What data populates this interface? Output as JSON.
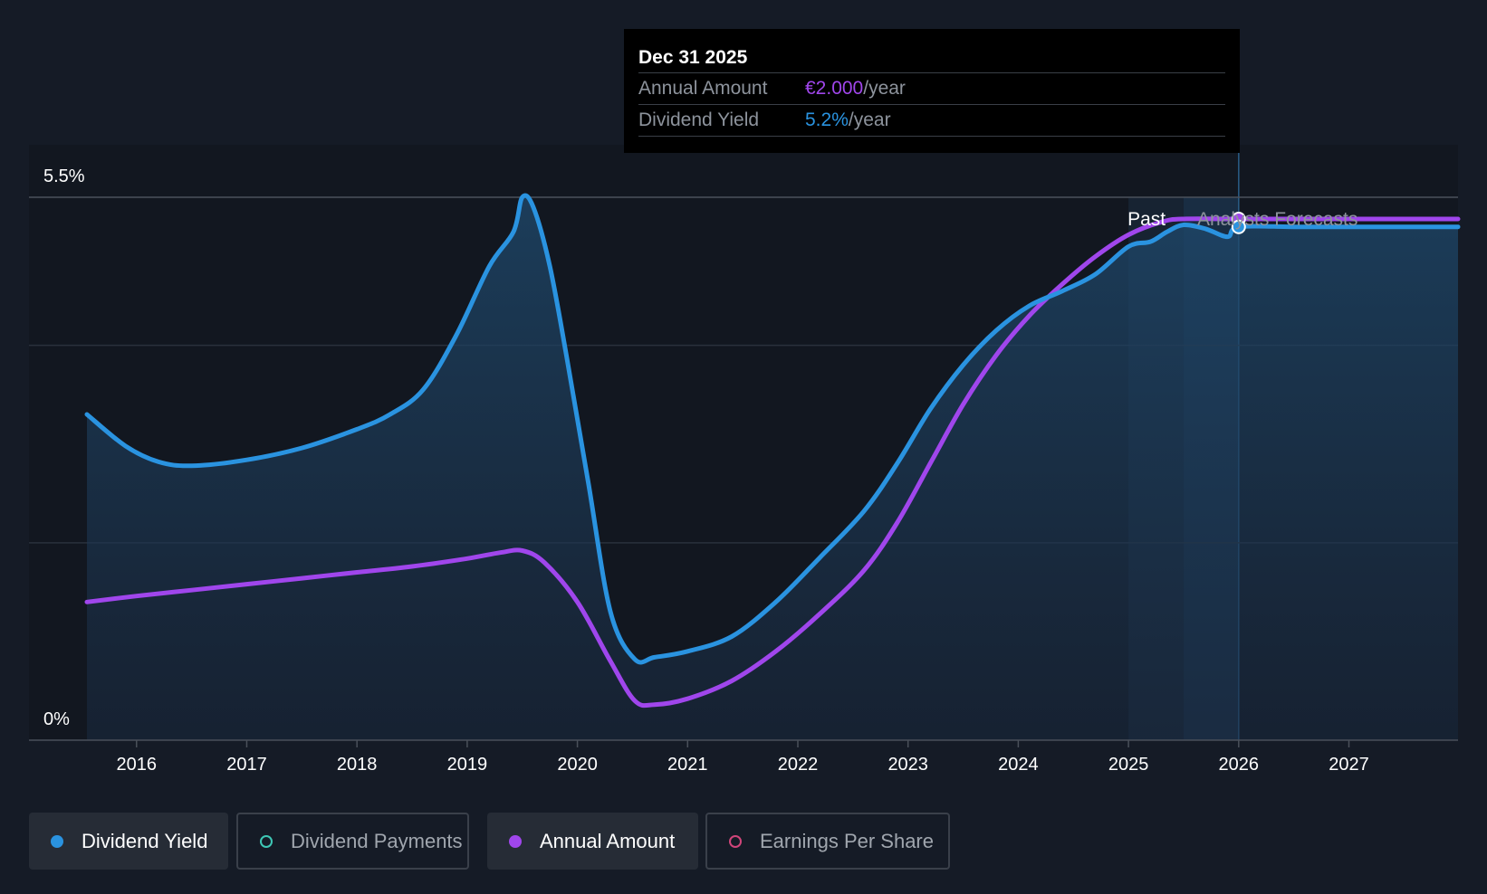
{
  "chart_data": {
    "type": "line",
    "x_axis": {
      "tick_labels": [
        "2016",
        "2017",
        "2018",
        "2019",
        "2020",
        "2021",
        "2022",
        "2023",
        "2024",
        "2025",
        "2026",
        "2027"
      ],
      "range": [
        2015.55,
        2027.99
      ]
    },
    "y_axis": {
      "tick_labels": [
        "0%",
        "5.5%"
      ],
      "range": [
        0,
        5.5
      ],
      "gridlines": [
        0,
        2.0,
        4.0,
        5.5
      ]
    },
    "series": [
      {
        "name": "Dividend Yield",
        "color": "#2a93e0",
        "area_fill": true,
        "x": [
          2015.55,
          2015.9,
          2016.2,
          2016.5,
          2017.0,
          2017.5,
          2018.0,
          2018.3,
          2018.6,
          2018.9,
          2019.2,
          2019.42,
          2019.5,
          2019.6,
          2019.75,
          2019.9,
          2020.1,
          2020.3,
          2020.52,
          2020.7,
          2021.0,
          2021.4,
          2021.8,
          2022.2,
          2022.6,
          2022.9,
          2023.2,
          2023.5,
          2023.8,
          2024.1,
          2024.4,
          2024.7,
          2025.0,
          2025.2,
          2025.35,
          2025.5,
          2025.7,
          2025.9,
          2026.0,
          2026.5,
          2027.0,
          2027.99
        ],
        "values": [
          3.3,
          2.98,
          2.82,
          2.78,
          2.84,
          2.96,
          3.15,
          3.3,
          3.55,
          4.1,
          4.8,
          5.15,
          5.5,
          5.4,
          4.8,
          3.9,
          2.6,
          1.3,
          0.82,
          0.84,
          0.9,
          1.05,
          1.4,
          1.85,
          2.32,
          2.8,
          3.35,
          3.8,
          4.15,
          4.4,
          4.55,
          4.72,
          5.0,
          5.05,
          5.15,
          5.22,
          5.18,
          5.1,
          5.2,
          5.2,
          5.2,
          5.2
        ]
      },
      {
        "name": "Annual Amount",
        "color": "#a046ec",
        "area_fill": false,
        "x": [
          2015.55,
          2016.0,
          2016.5,
          2017.0,
          2017.5,
          2018.0,
          2018.5,
          2019.0,
          2019.3,
          2019.5,
          2019.7,
          2020.0,
          2020.3,
          2020.52,
          2020.7,
          2021.0,
          2021.4,
          2021.8,
          2022.2,
          2022.6,
          2022.9,
          2023.2,
          2023.5,
          2023.8,
          2024.1,
          2024.4,
          2024.7,
          2025.0,
          2025.3,
          2025.5,
          2026.0,
          2027.0,
          2027.99
        ],
        "values": [
          1.4,
          1.46,
          1.52,
          1.58,
          1.64,
          1.7,
          1.76,
          1.84,
          1.9,
          1.92,
          1.8,
          1.4,
          0.8,
          0.4,
          0.36,
          0.42,
          0.6,
          0.9,
          1.28,
          1.72,
          2.2,
          2.8,
          3.4,
          3.9,
          4.3,
          4.62,
          4.9,
          5.12,
          5.25,
          5.28,
          5.28,
          5.28,
          5.28
        ]
      }
    ],
    "markers": [
      {
        "series": "Annual Amount",
        "x": 2026.0,
        "value": 5.28
      },
      {
        "series": "Dividend Yield",
        "x": 2026.0,
        "value": 5.2
      }
    ],
    "regions": {
      "past_label": "Past",
      "forecast_label": "Analysts Forecasts",
      "past_band": [
        2025.0,
        2025.5
      ],
      "highlight_band": [
        2025.5,
        2026.0
      ],
      "divider_x": 2026.0
    },
    "tooltip": {
      "date": "Dec 31 2025",
      "rows": [
        {
          "label": "Annual Amount",
          "value": "€2.000",
          "unit": "/year",
          "color": "#a046ec"
        },
        {
          "label": "Dividend Yield",
          "value": "5.2%",
          "unit": "/year",
          "color": "#2a93e0"
        }
      ]
    },
    "legend": [
      {
        "label": "Dividend Yield",
        "color": "#2a93e0",
        "active": true
      },
      {
        "label": "Dividend Payments",
        "color": "#3ec7b5",
        "active": false
      },
      {
        "label": "Annual Amount",
        "color": "#a046ec",
        "active": true
      },
      {
        "label": "Earnings Per Share",
        "color": "#d0457a",
        "active": false
      }
    ]
  }
}
